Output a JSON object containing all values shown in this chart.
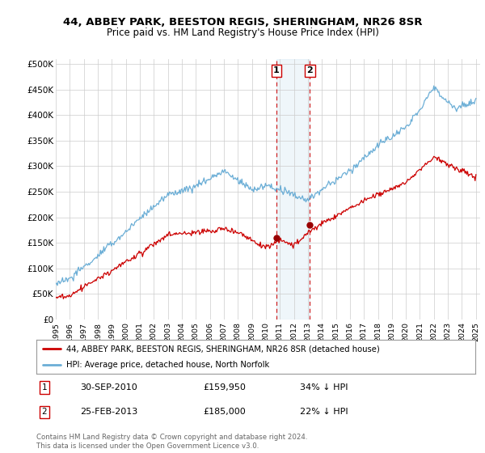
{
  "title1": "44, ABBEY PARK, BEESTON REGIS, SHERINGHAM, NR26 8SR",
  "title2": "Price paid vs. HM Land Registry's House Price Index (HPI)",
  "ylabel_ticks": [
    "£0",
    "£50K",
    "£100K",
    "£150K",
    "£200K",
    "£250K",
    "£300K",
    "£350K",
    "£400K",
    "£450K",
    "£500K"
  ],
  "ytick_values": [
    0,
    50000,
    100000,
    150000,
    200000,
    250000,
    300000,
    350000,
    400000,
    450000,
    500000
  ],
  "ylim": [
    0,
    510000
  ],
  "sale1_date": 2010.75,
  "sale1_price": 159950,
  "sale1_label": "1",
  "sale2_date": 2013.15,
  "sale2_price": 185000,
  "sale2_label": "2",
  "hpi_color": "#6baed6",
  "sale_color": "#cc0000",
  "marker_color": "#990000",
  "legend1": "44, ABBEY PARK, BEESTON REGIS, SHERINGHAM, NR26 8SR (detached house)",
  "legend2": "HPI: Average price, detached house, North Norfolk",
  "annotation1_date": "30-SEP-2010",
  "annotation1_price": "£159,950",
  "annotation1_hpi": "34% ↓ HPI",
  "annotation2_date": "25-FEB-2013",
  "annotation2_price": "£185,000",
  "annotation2_hpi": "22% ↓ HPI",
  "footer": "Contains HM Land Registry data © Crown copyright and database right 2024.\nThis data is licensed under the Open Government Licence v3.0.",
  "background_color": "#ffffff",
  "grid_color": "#cccccc"
}
